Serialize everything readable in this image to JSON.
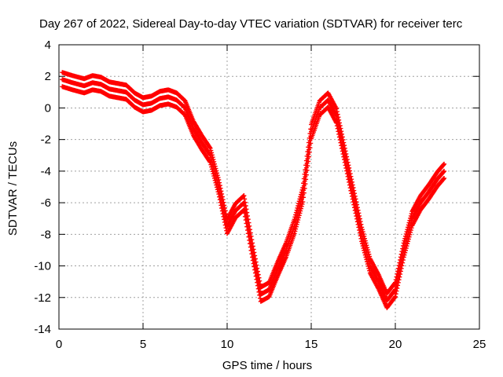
{
  "chart_data": {
    "type": "scatter",
    "title": "Day 267 of 2022, Sidereal Day-to-day VTEC variation (SDTVAR) for receiver terc",
    "xlabel": "GPS time / hours",
    "ylabel": "SDTVAR / TECUs",
    "xlim": [
      0,
      25
    ],
    "ylim": [
      -14,
      4
    ],
    "x_ticks": [
      "0",
      "5",
      "10",
      "15",
      "20",
      "25"
    ],
    "y_ticks": [
      "4",
      "2",
      "0",
      "-2",
      "-4",
      "-6",
      "-8",
      "-10",
      "-12",
      "-14"
    ],
    "grid": true,
    "marker": "+",
    "series": [
      {
        "name": "SDTVAR",
        "color": "#ff0000",
        "x": [
          0.2,
          0.8,
          1.5,
          2.0,
          2.5,
          3.0,
          3.5,
          4.0,
          4.5,
          5.0,
          5.5,
          6.0,
          6.5,
          7.0,
          7.5,
          8.0,
          8.5,
          9.0,
          9.5,
          10.0,
          10.5,
          11.0,
          11.5,
          12.0,
          12.5,
          13.0,
          13.5,
          14.0,
          14.5,
          15.0,
          15.5,
          16.0,
          16.5,
          17.0,
          17.5,
          18.0,
          18.5,
          19.0,
          19.5,
          20.0,
          20.5,
          21.0,
          21.5,
          22.0,
          22.5,
          22.9
        ],
        "y": [
          1.8,
          1.6,
          1.4,
          1.6,
          1.5,
          1.2,
          1.1,
          1.0,
          0.5,
          0.2,
          0.3,
          0.6,
          0.7,
          0.5,
          0.0,
          -1.3,
          -2.2,
          -3.0,
          -5.0,
          -7.5,
          -6.5,
          -6.0,
          -9.0,
          -11.8,
          -11.5,
          -10.2,
          -9.0,
          -7.5,
          -5.5,
          -1.5,
          0.0,
          0.5,
          -0.5,
          -3.0,
          -5.5,
          -8.0,
          -10.0,
          -11.0,
          -12.2,
          -11.5,
          -9.0,
          -7.0,
          -6.0,
          -5.3,
          -4.5,
          -4.0
        ]
      }
    ]
  }
}
